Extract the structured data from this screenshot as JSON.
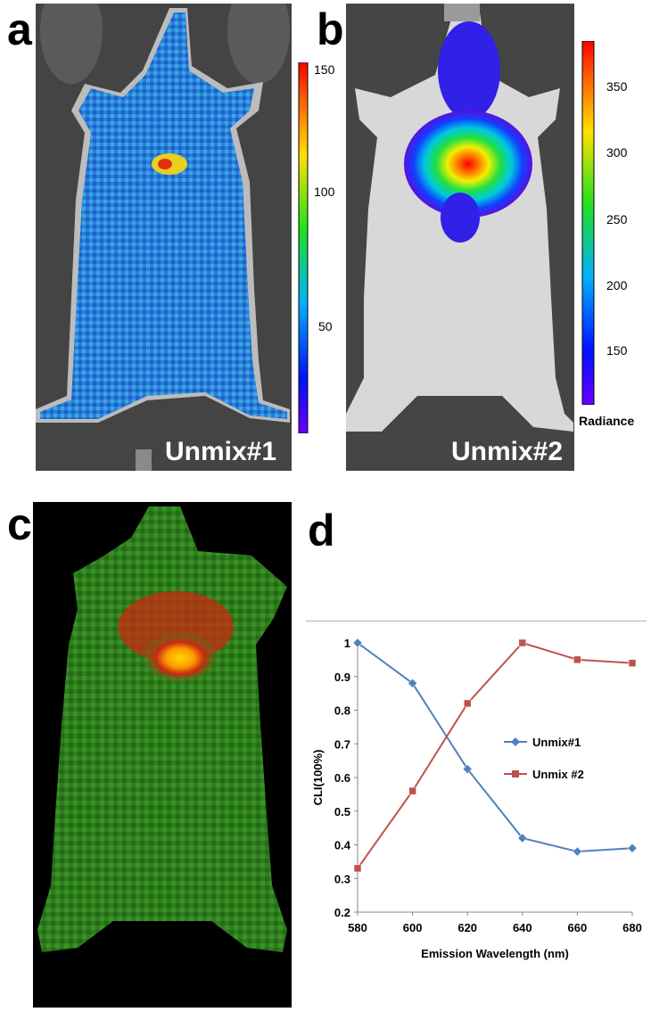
{
  "panels": {
    "a": {
      "letter": "a",
      "label": "Unmix#1",
      "colorbar": {
        "ticks": [
          "150",
          "100",
          "50"
        ],
        "tick_values": [
          150,
          100,
          50
        ],
        "range": [
          10,
          150
        ]
      }
    },
    "b": {
      "letter": "b",
      "label": "Unmix#2",
      "colorbar": {
        "ticks": [
          "350",
          "300",
          "250",
          "200",
          "150"
        ],
        "tick_values": [
          350,
          300,
          250,
          200,
          150
        ],
        "range": [
          105,
          385
        ],
        "title": "Radiance"
      }
    },
    "c": {
      "letter": "c"
    },
    "d": {
      "letter": "d"
    }
  },
  "colors": {
    "unmix1_series": "#4f81bd",
    "unmix2_series": "#c0504d",
    "mouse_background": "#3a3a3a",
    "composite_green": "#2f8f1f",
    "composite_red": "#c82a10"
  },
  "chart_data": {
    "type": "line",
    "xlabel": "Emission Wavelength (nm)",
    "ylabel": "CLI(100%)",
    "x": [
      580,
      600,
      620,
      640,
      660,
      680
    ],
    "xlim": [
      580,
      680
    ],
    "ylim": [
      0.2,
      1.0
    ],
    "xticks": [
      "580",
      "600",
      "620",
      "640",
      "660",
      "680"
    ],
    "yticks": [
      "0.2",
      "0.3",
      "0.4",
      "0.5",
      "0.6",
      "0.7",
      "0.8",
      "0.9",
      "1"
    ],
    "legend_position": "right",
    "grid": false,
    "series": [
      {
        "name": "Unmix#1",
        "marker": "diamond",
        "color": "#4f81bd",
        "values": [
          1.0,
          0.88,
          0.625,
          0.42,
          0.38,
          0.39
        ]
      },
      {
        "name": "Unmix #2",
        "marker": "square",
        "color": "#c0504d",
        "values": [
          0.33,
          0.56,
          0.82,
          1.0,
          0.95,
          0.94
        ]
      }
    ]
  }
}
